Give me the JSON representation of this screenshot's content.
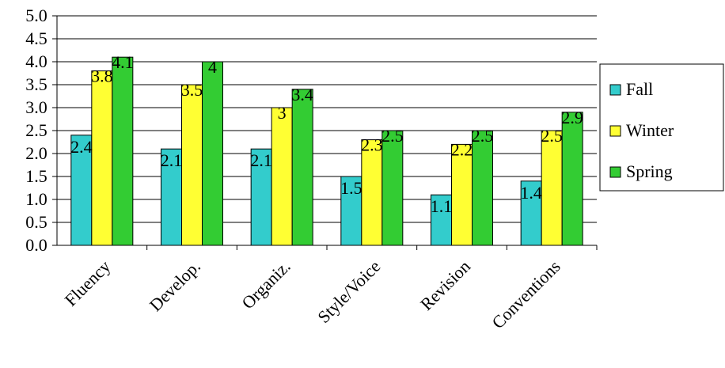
{
  "chart_data": {
    "type": "bar",
    "categories": [
      "Fluency",
      "Develop.",
      "Organiz.",
      "Style/Voice",
      "Revision",
      "Conventions"
    ],
    "series": [
      {
        "name": "Fall",
        "values": [
          2.4,
          2.1,
          2.1,
          1.5,
          1.1,
          1.4
        ],
        "color": "#33CCCC"
      },
      {
        "name": "Winter",
        "values": [
          3.8,
          3.5,
          3.0,
          2.3,
          2.2,
          2.5
        ],
        "color": "#FFFF33"
      },
      {
        "name": "Spring",
        "values": [
          4.1,
          4.0,
          3.4,
          2.5,
          2.5,
          2.9
        ],
        "color": "#33CC33"
      }
    ],
    "data_labels": [
      [
        "2.4",
        "2.1",
        "2.1",
        "1.5",
        "1.1",
        "1.4"
      ],
      [
        "3.8",
        "3.5",
        "3",
        "2.3",
        "2.2",
        "2.5"
      ],
      [
        "4.1",
        "4",
        "3.4",
        "2.5",
        "2.5",
        "2.9"
      ]
    ],
    "y_ticks": [
      "0.0",
      "0.5",
      "1.0",
      "1.5",
      "2.0",
      "2.5",
      "3.0",
      "3.5",
      "4.0",
      "4.5",
      "5.0"
    ],
    "ylim": [
      0,
      5
    ],
    "grid": true,
    "legend_position": "right",
    "title": "",
    "xlabel": "",
    "ylabel": ""
  }
}
